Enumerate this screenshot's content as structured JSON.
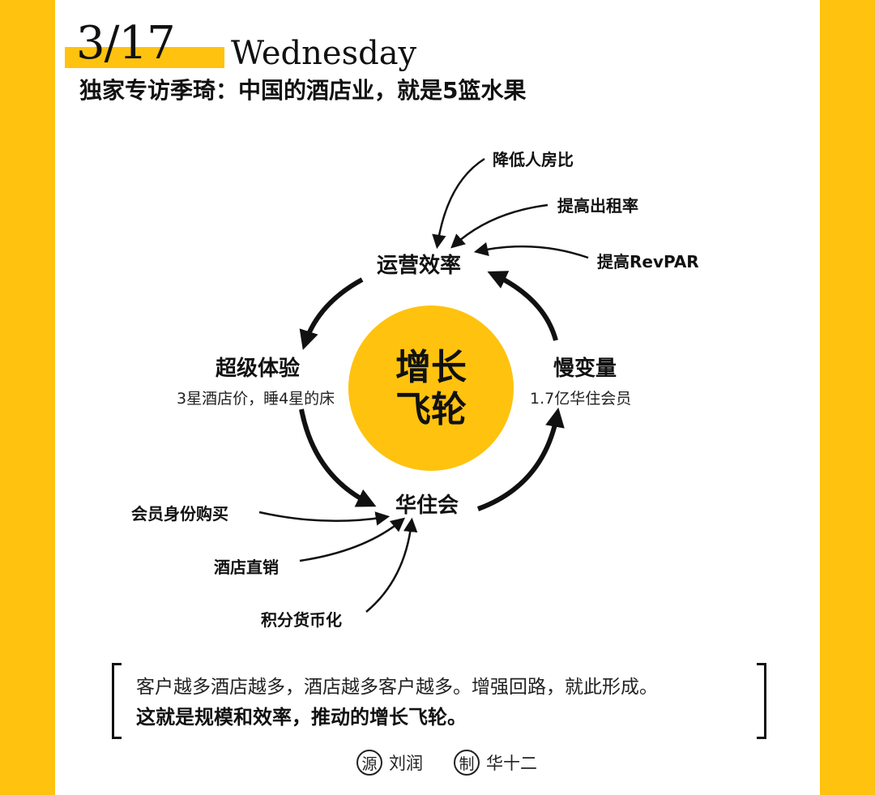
{
  "header": {
    "date": "3/17",
    "weekday": "Wednesday",
    "headline": "独家专访季琦：中国的酒店业，就是5篮水果"
  },
  "center": {
    "line1": "增长",
    "line2": "飞轮"
  },
  "nodes": {
    "top": "运营效率",
    "left": "超级体验",
    "left_sub": "3星酒店价，睡4星的床",
    "right": "慢变量",
    "right_sub": "1.7亿华住会员",
    "bottom": "华住会"
  },
  "inputs_top": [
    "降低人房比",
    "提高出租率",
    "提高RevPAR"
  ],
  "inputs_bottom": [
    "会员身份购买",
    "酒店直销",
    "积分货币化"
  ],
  "quote": {
    "line1": "客户越多酒店越多，酒店越多客户越多。增强回路，就此形成。",
    "line2": "这就是规模和效率，推动的增长飞轮。"
  },
  "credits": {
    "source_mark": "源",
    "source_name": "刘润",
    "maker_mark": "制",
    "maker_name": "华十二"
  },
  "colors": {
    "accent": "#FFC20E",
    "text": "#111111"
  }
}
